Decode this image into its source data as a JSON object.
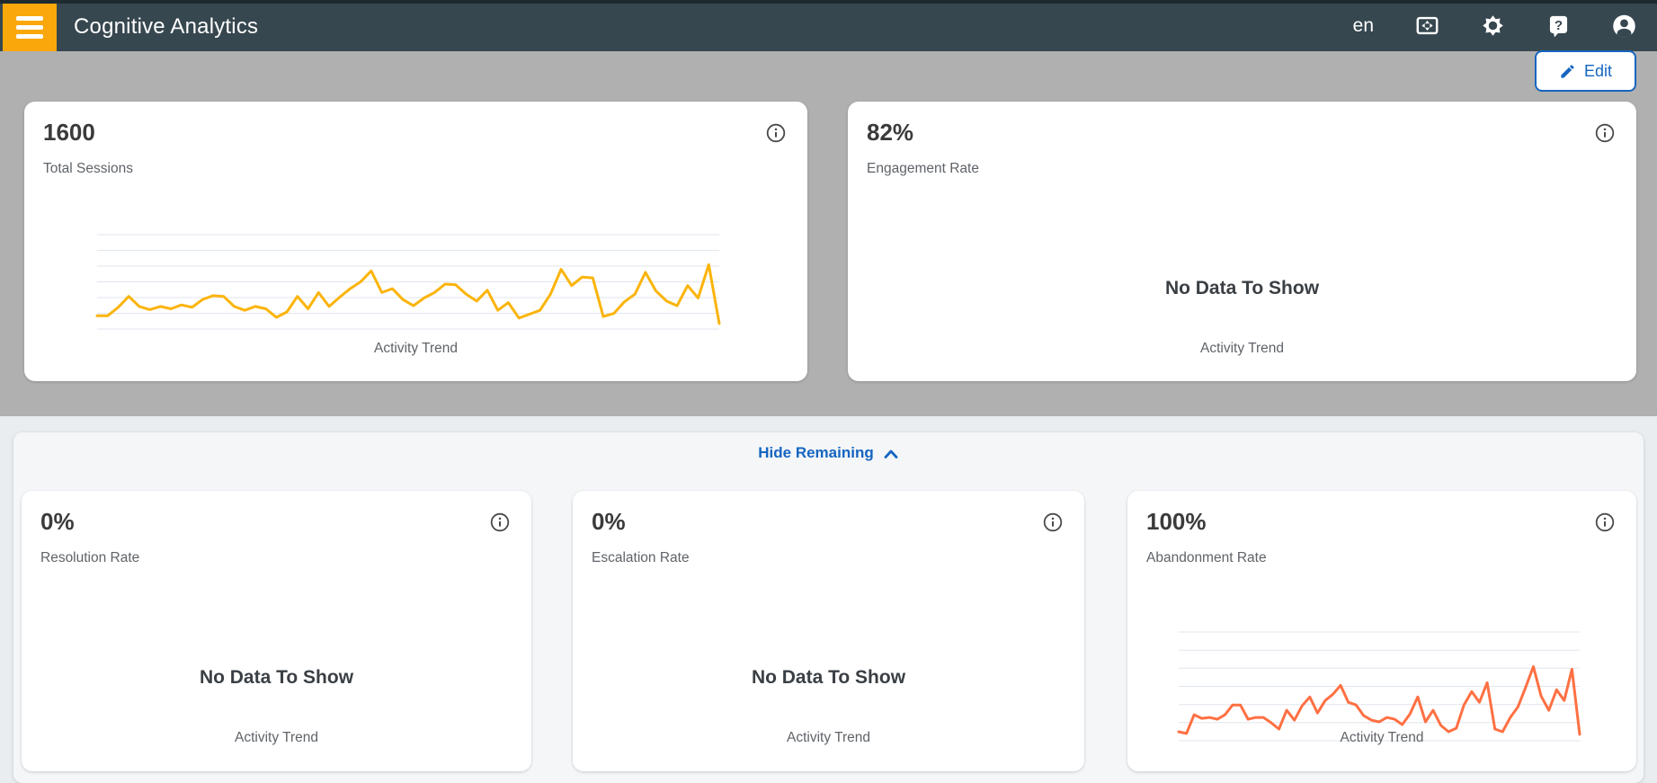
{
  "navbar": {
    "title": "Cognitive Analytics",
    "language": "en",
    "help_glyph": "?",
    "icons": [
      "menu-icon",
      "fit-screen-icon",
      "gear-icon",
      "help-icon",
      "account-icon"
    ]
  },
  "edit_button": {
    "label": "Edit"
  },
  "panel": {
    "hide_label": "Hide Remaining"
  },
  "cards": [
    {
      "value": "1600",
      "label": "Total Sessions",
      "chart_label": "Activity Trend"
    },
    {
      "value": "82%",
      "label": "Engagement Rate",
      "no_data": "No Data To Show",
      "chart_label": "Activity Trend"
    },
    {
      "value": "0%",
      "label": "Resolution Rate",
      "no_data": "No Data To Show",
      "chart_label": "Activity Trend"
    },
    {
      "value": "0%",
      "label": "Escalation Rate",
      "no_data": "No Data To Show",
      "chart_label": "Activity Trend"
    },
    {
      "value": "100%",
      "label": "Abandonment Rate",
      "chart_label": "Activity Trend"
    }
  ],
  "colors": {
    "navbar_bg": "#37474F",
    "hamburger_bg": "#F9A70B",
    "accent_blue": "#1565C0",
    "amber_line": "#FBB40B",
    "orange_line": "#FF7043",
    "gridline": "#E1E5EE",
    "gray_band": "#B0B0B0"
  },
  "chart_data": [
    {
      "type": "line",
      "card": "Total Sessions",
      "title": "Activity Trend",
      "color": "#FBB40B",
      "gridlines": 7,
      "grid": true,
      "legend": "none",
      "y_axis_unlabeled": true,
      "ylim": [
        0,
        100
      ],
      "values": [
        22,
        22,
        33,
        47,
        34,
        30,
        34,
        31,
        36,
        33,
        43,
        48,
        47,
        34,
        29,
        34,
        31,
        20,
        27,
        47,
        31,
        52,
        34,
        46,
        57,
        66,
        80,
        52,
        57,
        43,
        35,
        45,
        52,
        63,
        62,
        50,
        41,
        55,
        29,
        39,
        19,
        24,
        29,
        50,
        82,
        61,
        72,
        71,
        21,
        25,
        40,
        50,
        78,
        54,
        41,
        35,
        61,
        45,
        88,
        12
      ]
    },
    {
      "type": "line",
      "card": "Abandonment Rate",
      "title": "Activity Trend",
      "color": "#FF7043",
      "gridlines": 7,
      "grid": true,
      "legend": "none",
      "y_axis_unlabeled": true,
      "ylim": [
        0,
        100
      ],
      "values": [
        15,
        13,
        34,
        30,
        31,
        29,
        34,
        45,
        45,
        29,
        31,
        31,
        25,
        18,
        39,
        28,
        44,
        54,
        36,
        50,
        57,
        67,
        48,
        45,
        33,
        28,
        26,
        31,
        29,
        23,
        35,
        54,
        26,
        39,
        22,
        15,
        19,
        45,
        60,
        48,
        70,
        18,
        15,
        31,
        43,
        65,
        88,
        55,
        39,
        62,
        50,
        85,
        12
      ]
    }
  ]
}
